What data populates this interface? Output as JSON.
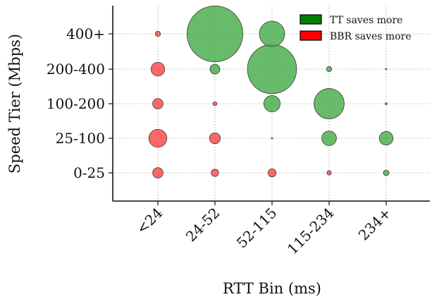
{
  "chart_data": {
    "type": "scatter",
    "subtype": "bubble",
    "title": "",
    "xlabel": "RTT Bin (ms)",
    "ylabel": "Speed Tier (Mbps)",
    "x_categories": [
      "<24",
      "24-52",
      "52-115",
      "115-234",
      "234+"
    ],
    "y_categories": [
      "0-25",
      "25-100",
      "100-200",
      "200-400",
      "400+"
    ],
    "grid": true,
    "legend_position": "top-right",
    "series": [
      {
        "name": "TT saves more",
        "color": "#4caf50",
        "legend_color": "#008000"
      },
      {
        "name": "BBR saves more",
        "color": "#ff4d4d",
        "legend_color": "#ff0000"
      }
    ],
    "points": [
      {
        "x": "<24",
        "y": "400+",
        "winner": "BBR saves more",
        "magnitude": 0.5
      },
      {
        "x": "<24",
        "y": "200-400",
        "winner": "BBR saves more",
        "magnitude": 3.5
      },
      {
        "x": "<24",
        "y": "100-200",
        "winner": "BBR saves more",
        "magnitude": 2
      },
      {
        "x": "<24",
        "y": "25-100",
        "winner": "BBR saves more",
        "magnitude": 6
      },
      {
        "x": "<24",
        "y": "0-25",
        "winner": "BBR saves more",
        "magnitude": 2
      },
      {
        "x": "24-52",
        "y": "400+",
        "winner": "TT saves more",
        "magnitude": 58
      },
      {
        "x": "24-52",
        "y": "200-400",
        "winner": "TT saves more",
        "magnitude": 1.8
      },
      {
        "x": "24-52",
        "y": "100-200",
        "winner": "BBR saves more",
        "magnitude": 0.3
      },
      {
        "x": "24-52",
        "y": "25-100",
        "winner": "BBR saves more",
        "magnitude": 2.2
      },
      {
        "x": "24-52",
        "y": "0-25",
        "winner": "BBR saves more",
        "magnitude": 1
      },
      {
        "x": "52-115",
        "y": "400+",
        "winner": "TT saves more",
        "magnitude": 12
      },
      {
        "x": "52-115",
        "y": "200-400",
        "winner": "TT saves more",
        "magnitude": 45
      },
      {
        "x": "52-115",
        "y": "100-200",
        "winner": "TT saves more",
        "magnitude": 5
      },
      {
        "x": "52-115",
        "y": "25-100",
        "winner": "TT saves more",
        "magnitude": 0.02
      },
      {
        "x": "52-115",
        "y": "0-25",
        "winner": "BBR saves more",
        "magnitude": 1.2
      },
      {
        "x": "115-234",
        "y": "200-400",
        "winner": "TT saves more",
        "magnitude": 0.5
      },
      {
        "x": "115-234",
        "y": "100-200",
        "winner": "TT saves more",
        "magnitude": 17
      },
      {
        "x": "115-234",
        "y": "25-100",
        "winner": "TT saves more",
        "magnitude": 4
      },
      {
        "x": "115-234",
        "y": "0-25",
        "winner": "BBR saves more",
        "magnitude": 0.35
      },
      {
        "x": "234+",
        "y": "200-400",
        "winner": "TT saves more",
        "magnitude": 0.02
      },
      {
        "x": "234+",
        "y": "100-200",
        "winner": "TT saves more",
        "magnitude": 0.08
      },
      {
        "x": "234+",
        "y": "25-100",
        "winner": "TT saves more",
        "magnitude": 3.5
      },
      {
        "x": "234+",
        "y": "0-25",
        "winner": "TT saves more",
        "magnitude": 0.6
      }
    ]
  }
}
